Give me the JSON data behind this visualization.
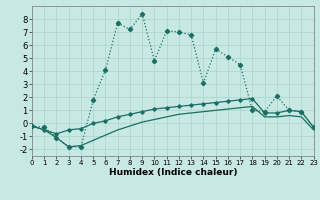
{
  "xlabel": "Humidex (Indice chaleur)",
  "background_color": "#c8e8e3",
  "grid_color": "#a8d4ce",
  "line_color": "#1a6e62",
  "xlim": [
    0,
    23
  ],
  "ylim": [
    -2.5,
    9.0
  ],
  "yticks": [
    -2,
    -1,
    0,
    1,
    2,
    3,
    4,
    5,
    6,
    7,
    8
  ],
  "xticks": [
    0,
    1,
    2,
    3,
    4,
    5,
    6,
    7,
    8,
    9,
    10,
    11,
    12,
    13,
    14,
    15,
    16,
    17,
    18,
    19,
    20,
    21,
    22,
    23
  ],
  "s1_x": [
    0,
    1,
    2,
    3,
    4,
    5,
    6,
    7,
    8,
    9,
    10,
    11,
    12,
    13,
    14,
    15,
    16,
    17,
    18,
    19,
    20,
    21,
    22,
    23
  ],
  "s1_y": [
    -0.2,
    -0.3,
    -1.1,
    -1.8,
    -1.8,
    1.8,
    4.1,
    7.7,
    7.2,
    8.4,
    4.8,
    7.1,
    7.0,
    6.8,
    3.1,
    5.7,
    5.1,
    4.5,
    1.0,
    0.9,
    2.1,
    1.0,
    0.9,
    -0.3
  ],
  "s2_x": [
    0,
    1,
    2,
    3,
    4,
    5,
    6,
    7,
    8,
    9,
    10,
    11,
    12,
    13,
    14,
    15,
    16,
    17,
    18,
    19,
    20,
    21,
    22,
    23
  ],
  "s2_y": [
    -0.2,
    -0.5,
    -0.8,
    -0.5,
    -0.4,
    0.0,
    0.2,
    0.5,
    0.7,
    0.9,
    1.1,
    1.2,
    1.3,
    1.4,
    1.5,
    1.6,
    1.7,
    1.8,
    1.9,
    0.8,
    0.8,
    1.0,
    0.9,
    -0.3
  ],
  "s3_x": [
    0,
    1,
    2,
    3,
    4,
    5,
    6,
    7,
    8,
    9,
    10,
    11,
    12,
    13,
    14,
    15,
    16,
    17,
    18,
    19,
    20,
    21,
    22,
    23
  ],
  "s3_y": [
    -0.2,
    -0.5,
    -1.1,
    -1.8,
    -1.7,
    -1.3,
    -0.9,
    -0.5,
    -0.2,
    0.1,
    0.3,
    0.5,
    0.7,
    0.8,
    0.9,
    1.0,
    1.1,
    1.2,
    1.3,
    0.5,
    0.5,
    0.6,
    0.5,
    -0.5
  ],
  "xlabel_fontsize": 6.5,
  "tick_fontsize_x": 5.0,
  "tick_fontsize_y": 6.0,
  "linewidth": 0.9,
  "markersize": 2.2
}
